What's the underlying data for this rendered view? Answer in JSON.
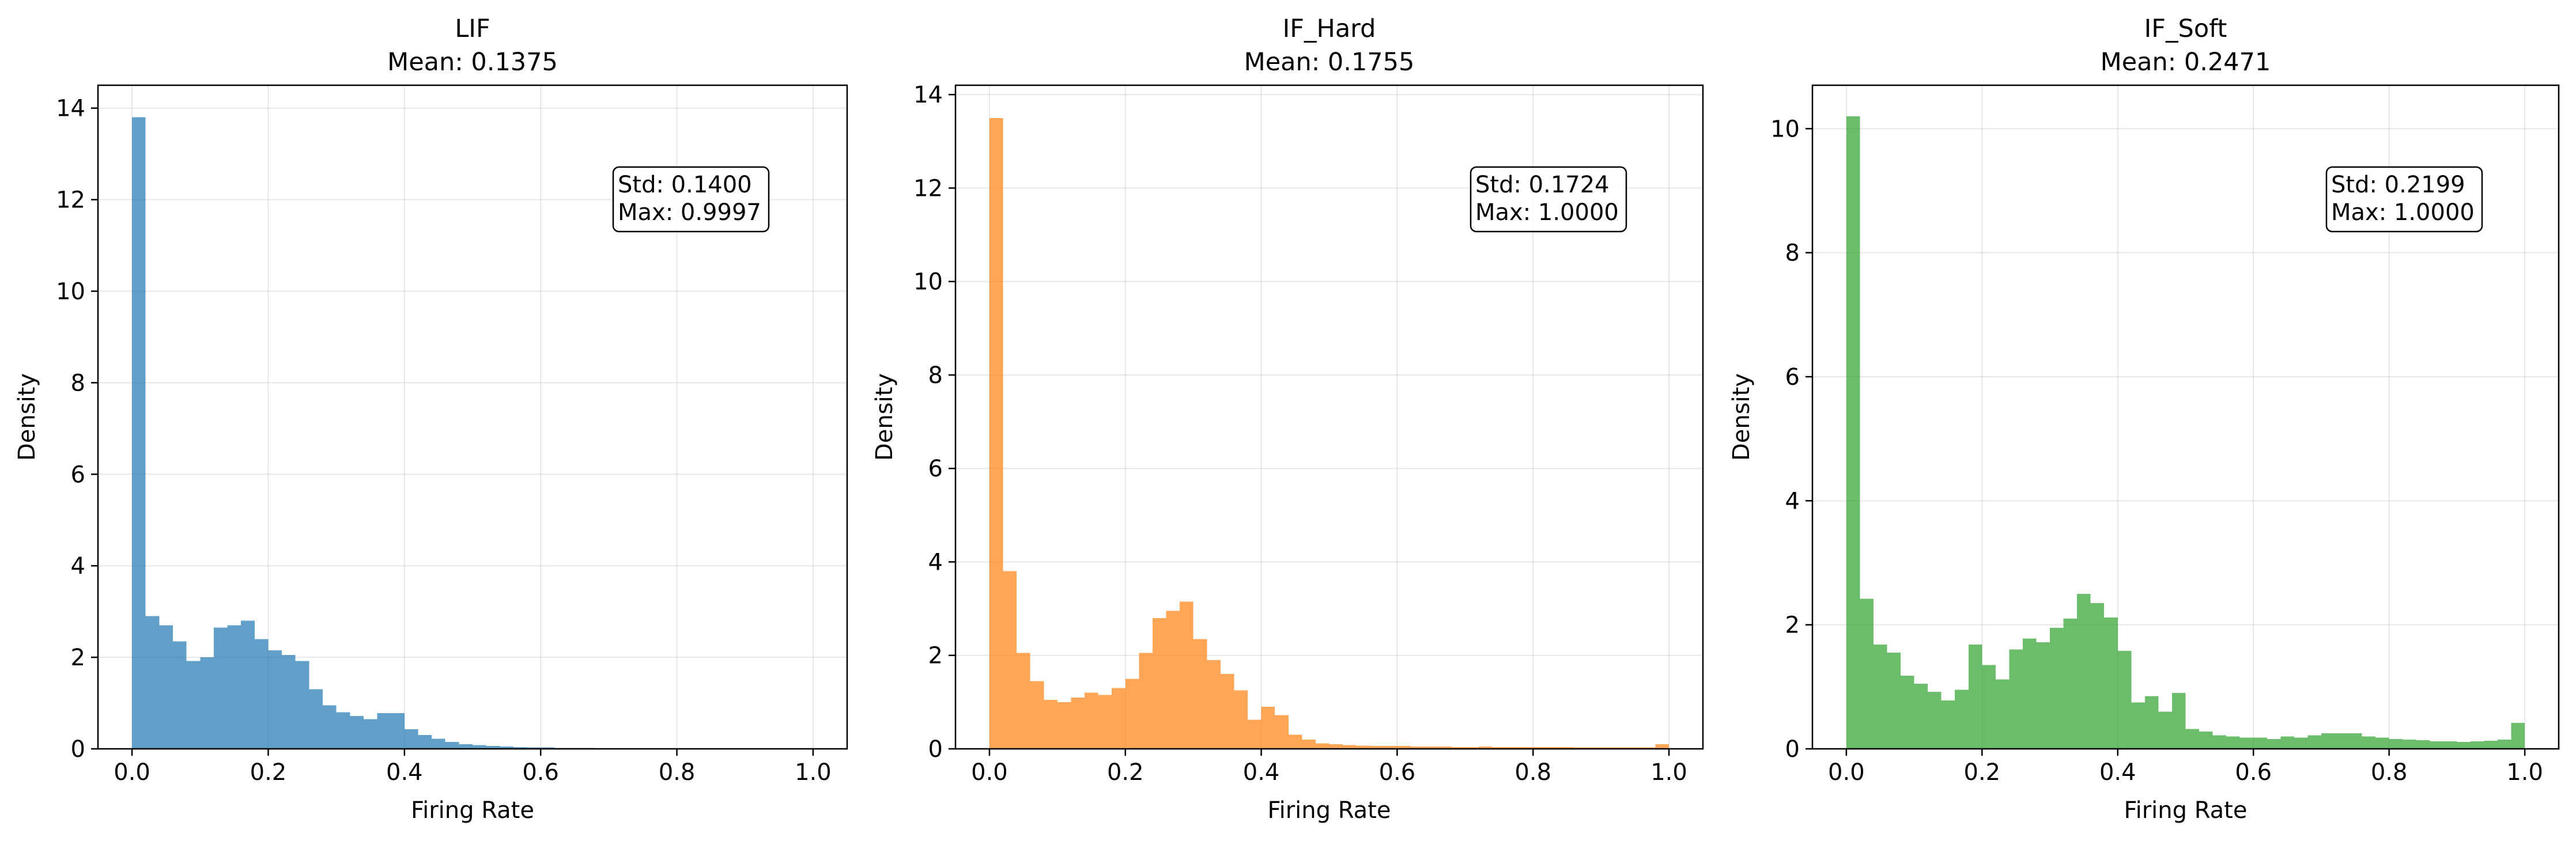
{
  "chart_data": [
    {
      "type": "bar",
      "subtype": "histogram",
      "title": "LIF",
      "subtitle": "Mean: 0.1375",
      "xlabel": "Firing Rate",
      "ylabel": "Density",
      "xlim": [
        -0.05,
        1.05
      ],
      "ylim": [
        0,
        14.5
      ],
      "xticks": [
        0.0,
        0.2,
        0.4,
        0.6,
        0.8,
        1.0
      ],
      "xtick_labels": [
        "0.0",
        "0.2",
        "0.4",
        "0.6",
        "0.8",
        "1.0"
      ],
      "yticks": [
        0,
        2,
        4,
        6,
        8,
        10,
        12,
        14
      ],
      "ytick_labels": [
        "0",
        "2",
        "4",
        "6",
        "8",
        "10",
        "12",
        "14"
      ],
      "grid": true,
      "color": "#1f77b4",
      "bin_width": 0.02,
      "bin_start": 0.0,
      "values": [
        13.8,
        2.9,
        2.7,
        2.35,
        1.92,
        2.0,
        2.65,
        2.7,
        2.8,
        2.4,
        2.15,
        2.05,
        1.92,
        1.3,
        0.95,
        0.8,
        0.72,
        0.65,
        0.78,
        0.78,
        0.43,
        0.3,
        0.22,
        0.15,
        0.1,
        0.08,
        0.06,
        0.05,
        0.04,
        0.03,
        0.03,
        0.02,
        0.02,
        0.02,
        0.01,
        0.01,
        0.01,
        0.01,
        0.01,
        0.01,
        0.01,
        0.01,
        0.01,
        0.01,
        0.01,
        0.01,
        0.01,
        0.01,
        0.01,
        0.01
      ],
      "stats": {
        "std_text": "Std: 0.1400",
        "max_text": "Max: 0.9997"
      }
    },
    {
      "type": "bar",
      "subtype": "histogram",
      "title": "IF_Hard",
      "subtitle": "Mean: 0.1755",
      "xlabel": "Firing Rate",
      "ylabel": "Density",
      "xlim": [
        -0.05,
        1.05
      ],
      "ylim": [
        0,
        14.2
      ],
      "xticks": [
        0.0,
        0.2,
        0.4,
        0.6,
        0.8,
        1.0
      ],
      "xtick_labels": [
        "0.0",
        "0.2",
        "0.4",
        "0.6",
        "0.8",
        "1.0"
      ],
      "yticks": [
        0,
        2,
        4,
        6,
        8,
        10,
        12,
        14
      ],
      "ytick_labels": [
        "0",
        "2",
        "4",
        "6",
        "8",
        "10",
        "12",
        "14"
      ],
      "grid": true,
      "color": "#ff7f0e",
      "bin_width": 0.02,
      "bin_start": 0.0,
      "values": [
        13.5,
        3.8,
        2.05,
        1.45,
        1.05,
        1.0,
        1.1,
        1.2,
        1.15,
        1.3,
        1.5,
        2.05,
        2.8,
        2.95,
        3.15,
        2.35,
        1.9,
        1.6,
        1.25,
        0.62,
        0.9,
        0.72,
        0.3,
        0.2,
        0.12,
        0.1,
        0.08,
        0.07,
        0.06,
        0.06,
        0.06,
        0.05,
        0.05,
        0.05,
        0.04,
        0.04,
        0.05,
        0.04,
        0.04,
        0.04,
        0.04,
        0.04,
        0.04,
        0.03,
        0.03,
        0.03,
        0.03,
        0.03,
        0.03,
        0.1
      ],
      "stats": {
        "std_text": "Std: 0.1724",
        "max_text": "Max: 1.0000"
      }
    },
    {
      "type": "bar",
      "subtype": "histogram",
      "title": "IF_Soft",
      "subtitle": "Mean: 0.2471",
      "xlabel": "Firing Rate",
      "ylabel": "Density",
      "xlim": [
        -0.05,
        1.05
      ],
      "ylim": [
        0,
        10.7
      ],
      "xticks": [
        0.0,
        0.2,
        0.4,
        0.6,
        0.8,
        1.0
      ],
      "xtick_labels": [
        "0.0",
        "0.2",
        "0.4",
        "0.6",
        "0.8",
        "1.0"
      ],
      "yticks": [
        0,
        2,
        4,
        6,
        8,
        10
      ],
      "ytick_labels": [
        "0",
        "2",
        "4",
        "6",
        "8",
        "10"
      ],
      "grid": true,
      "color": "#2ca02c",
      "bin_width": 0.02,
      "bin_start": 0.0,
      "values": [
        10.2,
        2.42,
        1.68,
        1.55,
        1.18,
        1.05,
        0.92,
        0.78,
        0.95,
        1.68,
        1.35,
        1.12,
        1.6,
        1.78,
        1.72,
        1.95,
        2.1,
        2.5,
        2.35,
        2.12,
        1.58,
        0.75,
        0.85,
        0.6,
        0.9,
        0.32,
        0.28,
        0.22,
        0.2,
        0.18,
        0.18,
        0.16,
        0.2,
        0.18,
        0.22,
        0.25,
        0.25,
        0.25,
        0.2,
        0.18,
        0.16,
        0.15,
        0.14,
        0.12,
        0.12,
        0.11,
        0.12,
        0.13,
        0.15,
        0.42
      ],
      "stats": {
        "std_text": "Std: 0.2199",
        "max_text": "Max: 1.0000"
      }
    }
  ]
}
